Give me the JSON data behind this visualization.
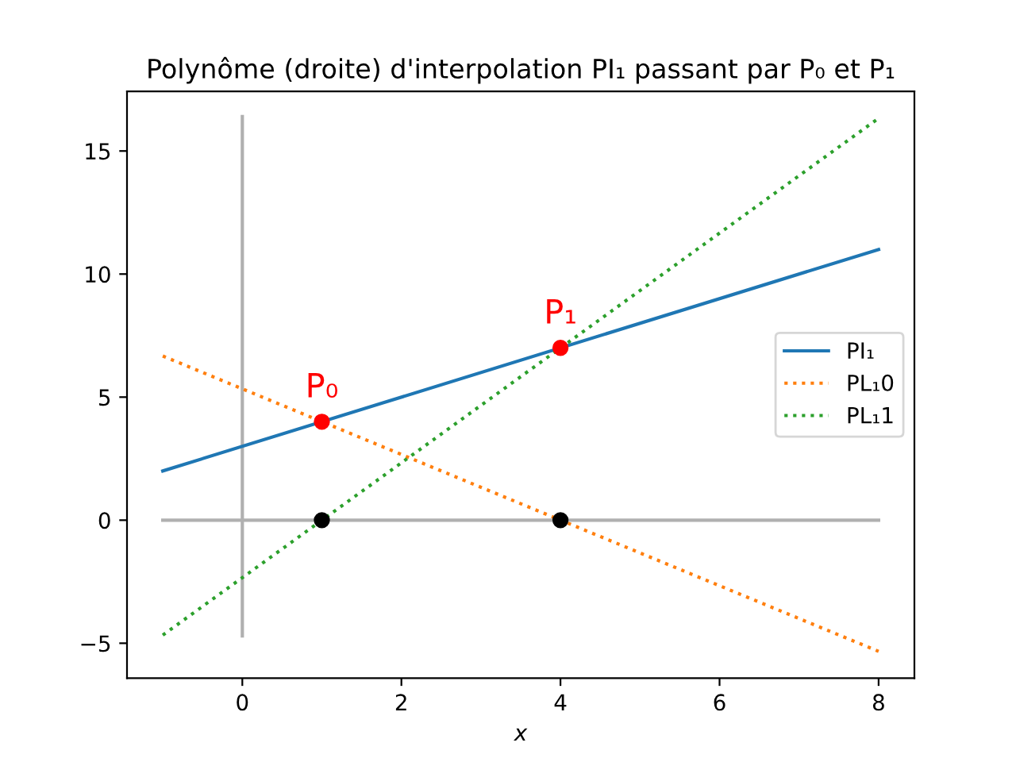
{
  "chart_data": {
    "type": "line",
    "title": "Polynôme (droite) d'interpolation PI₁ passant par P₀ et P₁",
    "xlabel": "x",
    "series": [
      {
        "color": "#b0b0b0",
        "x": [
          -1,
          8
        ],
        "values": [
          0,
          0
        ],
        "line_style": "solid"
      },
      {
        "color": "#b0b0b0",
        "x": [
          0,
          0
        ],
        "values": [
          -4.7,
          16.4
        ],
        "line_style": "solid"
      },
      {
        "name": "PI₁",
        "color": "#1f77b4",
        "x": [
          -1,
          8
        ],
        "values": [
          2,
          11
        ],
        "line_style": "solid"
      },
      {
        "name": "PL₁0",
        "color": "#ff7f0e",
        "x": [
          -1,
          8
        ],
        "values": [
          6.67,
          -5.33
        ],
        "line_style": "dotted"
      },
      {
        "name": "PL₁1",
        "color": "#2ca02c",
        "x": [
          -1,
          8
        ],
        "values": [
          -4.67,
          16.33
        ],
        "line_style": "dotted"
      },
      {
        "type": "scatter",
        "color": "#ff0000",
        "x": [
          1,
          4
        ],
        "values": [
          4,
          7
        ],
        "marker": "circle"
      },
      {
        "type": "scatter",
        "color": "#000000",
        "x": [
          1,
          4
        ],
        "values": [
          0,
          0
        ],
        "marker": "circle"
      }
    ],
    "annotations": [
      {
        "text": "P₀",
        "x": 1,
        "y": 4
      },
      {
        "text": "P₁",
        "x": 4,
        "y": 7
      }
    ],
    "xlim": [
      -1.45,
      8.45
    ],
    "ylim": [
      -6.42,
      17.42
    ],
    "xticks": [
      0,
      2,
      4,
      6,
      8
    ],
    "yticks": [
      -5,
      0,
      5,
      10,
      15
    ],
    "grid": false,
    "legend": "center right"
  }
}
